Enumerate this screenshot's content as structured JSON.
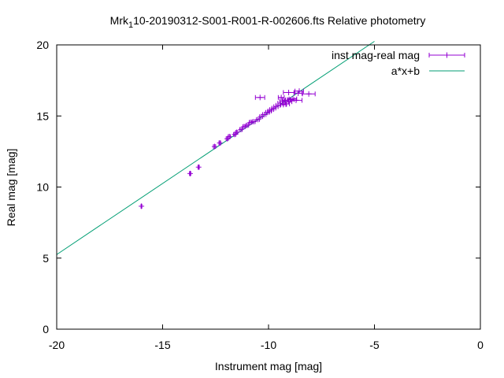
{
  "chart_data": {
    "type": "scatter",
    "title": "Mrk",
    "title_sub": "1",
    "title_rest": "10-20190312-S001-R001-R-002606.fts Relative photometry",
    "xlabel": "Instrument mag [mag]",
    "ylabel": "Real mag [mag]",
    "xlim": [
      -20,
      0
    ],
    "ylim": [
      0,
      20
    ],
    "xticks": [
      -20,
      -15,
      -10,
      -5,
      0
    ],
    "yticks": [
      0,
      5,
      10,
      15,
      20
    ],
    "grid": false,
    "legend_position": "top-right",
    "series": [
      {
        "name": "inst mag-real mag",
        "kind": "points-with-x-errorbars",
        "color": "#9400d3",
        "points": [
          {
            "x": -16.0,
            "y": 8.65,
            "xerr": 0.02
          },
          {
            "x": -13.7,
            "y": 10.95,
            "xerr": 0.03
          },
          {
            "x": -13.3,
            "y": 11.4,
            "xerr": 0.03
          },
          {
            "x": -12.55,
            "y": 12.85,
            "xerr": 0.05
          },
          {
            "x": -12.3,
            "y": 13.1,
            "xerr": 0.04
          },
          {
            "x": -11.95,
            "y": 13.4,
            "xerr": 0.05
          },
          {
            "x": -11.85,
            "y": 13.55,
            "xerr": 0.05
          },
          {
            "x": -11.6,
            "y": 13.7,
            "xerr": 0.05
          },
          {
            "x": -11.5,
            "y": 13.85,
            "xerr": 0.05
          },
          {
            "x": -11.3,
            "y": 14.05,
            "xerr": 0.06
          },
          {
            "x": -11.15,
            "y": 14.25,
            "xerr": 0.06
          },
          {
            "x": -11.0,
            "y": 14.35,
            "xerr": 0.06
          },
          {
            "x": -10.85,
            "y": 14.55,
            "xerr": 0.06
          },
          {
            "x": -10.7,
            "y": 14.6,
            "xerr": 0.07
          },
          {
            "x": -10.5,
            "y": 14.75,
            "xerr": 0.07
          },
          {
            "x": -10.35,
            "y": 14.95,
            "xerr": 0.07
          },
          {
            "x": -10.2,
            "y": 15.1,
            "xerr": 0.08
          },
          {
            "x": -10.05,
            "y": 15.25,
            "xerr": 0.08
          },
          {
            "x": -9.95,
            "y": 15.35,
            "xerr": 0.08
          },
          {
            "x": -9.85,
            "y": 15.45,
            "xerr": 0.09
          },
          {
            "x": -9.75,
            "y": 15.55,
            "xerr": 0.09
          },
          {
            "x": -9.65,
            "y": 15.65,
            "xerr": 0.1
          },
          {
            "x": -9.55,
            "y": 15.75,
            "xerr": 0.1
          },
          {
            "x": -9.45,
            "y": 15.9,
            "xerr": 0.11
          },
          {
            "x": -9.35,
            "y": 16.05,
            "xerr": 0.12
          },
          {
            "x": -9.3,
            "y": 15.8,
            "xerr": 0.12
          },
          {
            "x": -9.2,
            "y": 16.1,
            "xerr": 0.13
          },
          {
            "x": -9.15,
            "y": 15.85,
            "xerr": 0.14
          },
          {
            "x": -9.05,
            "y": 16.0,
            "xerr": 0.15
          },
          {
            "x": -8.95,
            "y": 16.15,
            "xerr": 0.16
          },
          {
            "x": -8.85,
            "y": 16.2,
            "xerr": 0.18
          },
          {
            "x": -9.05,
            "y": 16.65,
            "xerr": 0.25
          },
          {
            "x": -8.55,
            "y": 16.75,
            "xerr": 0.2
          },
          {
            "x": -8.1,
            "y": 16.55,
            "xerr": 0.3
          },
          {
            "x": -10.4,
            "y": 16.3,
            "xerr": 0.22
          },
          {
            "x": -8.7,
            "y": 16.1,
            "xerr": 0.28
          },
          {
            "x": -9.4,
            "y": 16.3,
            "xerr": 0.14
          },
          {
            "x": -8.6,
            "y": 16.6,
            "xerr": 0.18
          }
        ]
      },
      {
        "name": "a*x+b",
        "kind": "line",
        "color": "#009e73",
        "x": [
          -20.0,
          -5.0
        ],
        "y": [
          5.25,
          20.25
        ]
      }
    ]
  }
}
